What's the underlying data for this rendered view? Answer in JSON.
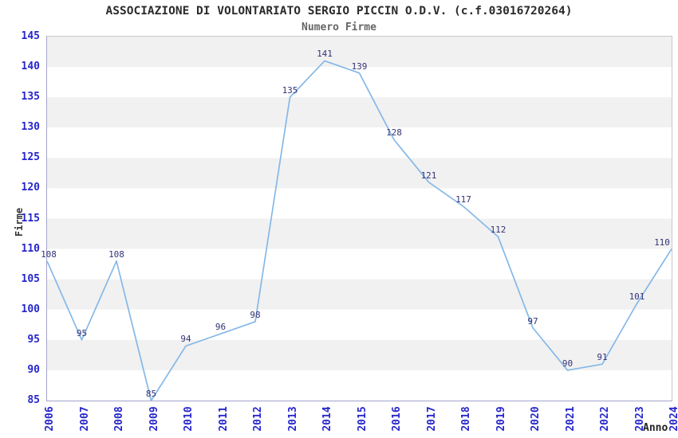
{
  "chart_data": {
    "type": "line",
    "title": "ASSOCIAZIONE DI VOLONTARIATO SERGIO PICCIN O.D.V. (c.f.03016720264)",
    "subtitle": "Numero Firme",
    "xlabel": "Anno",
    "ylabel": "Firme",
    "categories": [
      "2006",
      "2007",
      "2008",
      "2009",
      "2010",
      "2011",
      "2012",
      "2013",
      "2014",
      "2015",
      "2016",
      "2017",
      "2018",
      "2019",
      "2020",
      "2021",
      "2022",
      "2023",
      "2024"
    ],
    "series": [
      {
        "name": "Numero Firme",
        "values": [
          108,
          95,
          108,
          85,
          94,
          96,
          98,
          135,
          141,
          139,
          128,
          121,
          117,
          112,
          97,
          90,
          91,
          101,
          110
        ]
      }
    ],
    "ylim": [
      85,
      145
    ],
    "ytick_step": 5,
    "show_point_labels": true,
    "legend": "none",
    "grid": "alternating-horizontal-bands",
    "colors": {
      "line": "#85b8e8",
      "point_label": "#333377",
      "tick_label": "#2626cc",
      "band_gray": "#f1f1f1",
      "band_white": "#ffffff",
      "plot_border": "#c9c9c9",
      "axis_line": "#a3a3cc",
      "title": "#2b2b2b",
      "subtitle": "#666666",
      "axis_title": "#333333"
    }
  }
}
